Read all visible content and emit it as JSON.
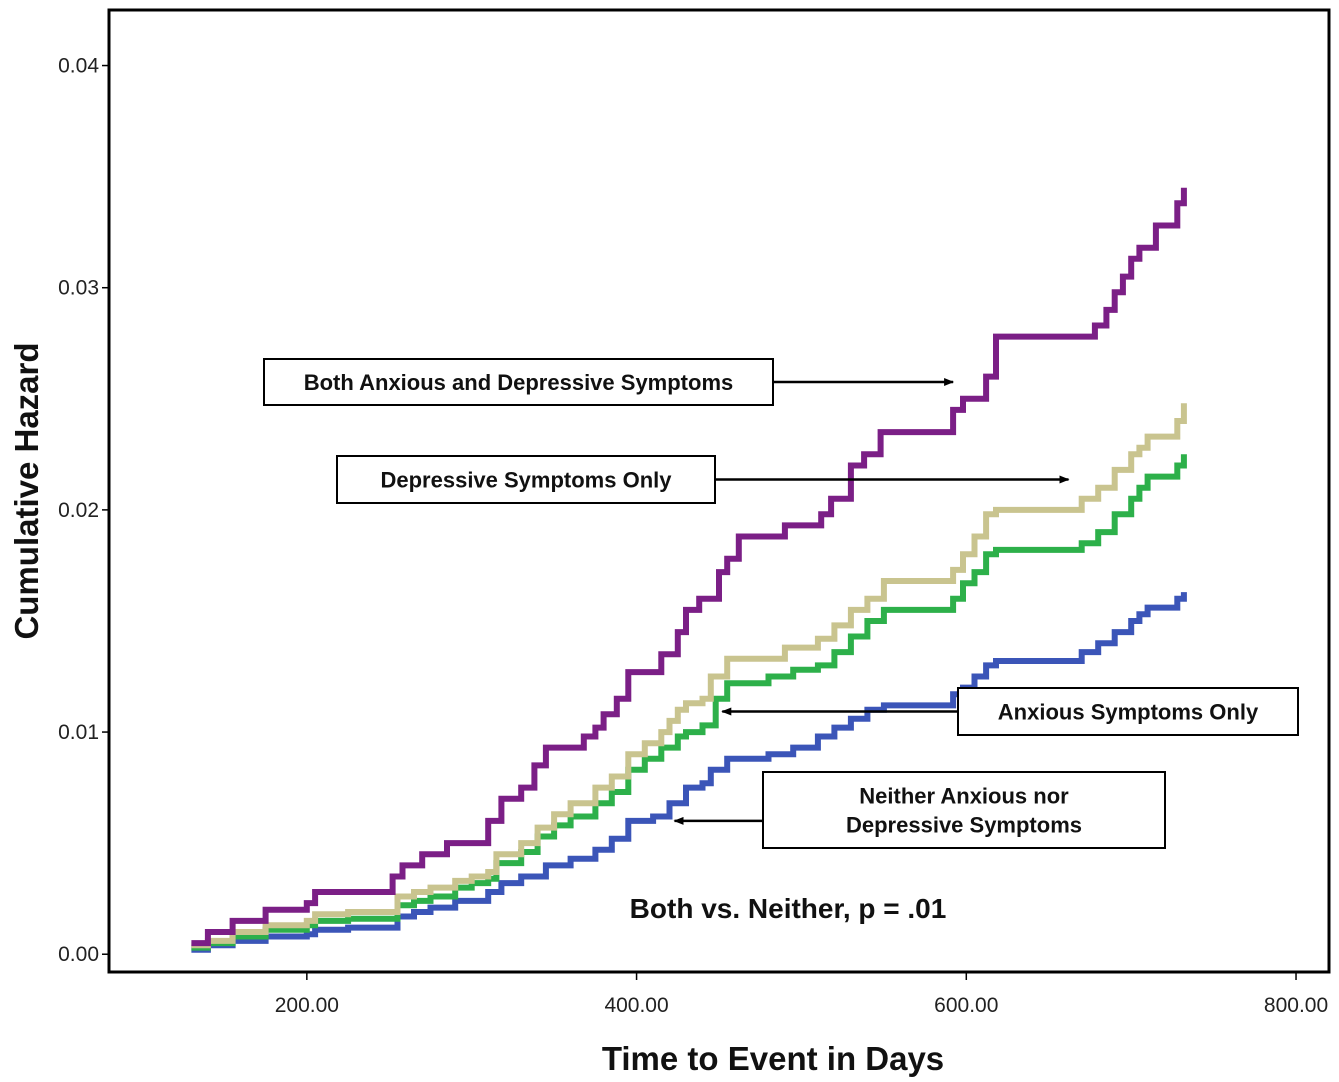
{
  "chart_data": {
    "type": "line",
    "step": true,
    "xlabel": "Time to Event in Days",
    "ylabel": "Cumulative Hazard",
    "xlim": [
      80,
      820
    ],
    "ylim": [
      -0.0008,
      0.0425
    ],
    "x_ticks": [
      200,
      400,
      600,
      800
    ],
    "x_tick_labels": [
      "200.00",
      "400.00",
      "600.00",
      "800.00"
    ],
    "y_ticks": [
      0.0,
      0.01,
      0.02,
      0.03,
      0.04
    ],
    "y_tick_labels": [
      "0.00",
      "0.01",
      "0.02",
      "0.03",
      "0.04"
    ],
    "grid": false,
    "series": [
      {
        "name": "Both Anxious and Depressive Symptoms",
        "color": "#7b1f86",
        "points": [
          [
            130,
            0.0005
          ],
          [
            140,
            0.001
          ],
          [
            155,
            0.0015
          ],
          [
            175,
            0.002
          ],
          [
            200,
            0.0023
          ],
          [
            205,
            0.0028
          ],
          [
            225,
            0.0028
          ],
          [
            250,
            0.0028
          ],
          [
            252,
            0.0035
          ],
          [
            258,
            0.004
          ],
          [
            270,
            0.0045
          ],
          [
            285,
            0.005
          ],
          [
            300,
            0.005
          ],
          [
            310,
            0.006
          ],
          [
            318,
            0.007
          ],
          [
            330,
            0.0075
          ],
          [
            338,
            0.0085
          ],
          [
            345,
            0.0093
          ],
          [
            360,
            0.0093
          ],
          [
            368,
            0.0098
          ],
          [
            375,
            0.0102
          ],
          [
            380,
            0.0108
          ],
          [
            388,
            0.0115
          ],
          [
            395,
            0.0127
          ],
          [
            410,
            0.0127
          ],
          [
            415,
            0.0135
          ],
          [
            425,
            0.0145
          ],
          [
            430,
            0.0155
          ],
          [
            438,
            0.016
          ],
          [
            448,
            0.016
          ],
          [
            450,
            0.0172
          ],
          [
            455,
            0.0178
          ],
          [
            462,
            0.0188
          ],
          [
            470,
            0.0188
          ],
          [
            480,
            0.0188
          ],
          [
            490,
            0.0193
          ],
          [
            505,
            0.0193
          ],
          [
            512,
            0.0198
          ],
          [
            518,
            0.0205
          ],
          [
            525,
            0.0205
          ],
          [
            530,
            0.022
          ],
          [
            538,
            0.0225
          ],
          [
            548,
            0.0235
          ],
          [
            585,
            0.0235
          ],
          [
            592,
            0.0245
          ],
          [
            598,
            0.025
          ],
          [
            605,
            0.025
          ],
          [
            612,
            0.026
          ],
          [
            618,
            0.0278
          ],
          [
            645,
            0.0278
          ],
          [
            670,
            0.0278
          ],
          [
            678,
            0.0283
          ],
          [
            685,
            0.029
          ],
          [
            690,
            0.0298
          ],
          [
            695,
            0.0305
          ],
          [
            700,
            0.0313
          ],
          [
            705,
            0.0318
          ],
          [
            710,
            0.0318
          ],
          [
            715,
            0.0328
          ],
          [
            725,
            0.0328
          ],
          [
            728,
            0.0338
          ],
          [
            732,
            0.0345
          ]
        ]
      },
      {
        "name": "Depressive Symptoms Only",
        "color": "#c9c48f",
        "points": [
          [
            130,
            0.0004
          ],
          [
            140,
            0.0006
          ],
          [
            155,
            0.001
          ],
          [
            175,
            0.0013
          ],
          [
            200,
            0.0015
          ],
          [
            205,
            0.0018
          ],
          [
            225,
            0.0019
          ],
          [
            250,
            0.0019
          ],
          [
            255,
            0.0026
          ],
          [
            265,
            0.0028
          ],
          [
            275,
            0.003
          ],
          [
            290,
            0.0033
          ],
          [
            300,
            0.0035
          ],
          [
            310,
            0.0037
          ],
          [
            315,
            0.0045
          ],
          [
            330,
            0.005
          ],
          [
            340,
            0.0057
          ],
          [
            350,
            0.0063
          ],
          [
            360,
            0.0068
          ],
          [
            375,
            0.0075
          ],
          [
            385,
            0.008
          ],
          [
            395,
            0.009
          ],
          [
            405,
            0.0095
          ],
          [
            415,
            0.01
          ],
          [
            420,
            0.0105
          ],
          [
            425,
            0.011
          ],
          [
            430,
            0.0113
          ],
          [
            440,
            0.0115
          ],
          [
            445,
            0.0125
          ],
          [
            455,
            0.0133
          ],
          [
            470,
            0.0133
          ],
          [
            480,
            0.0133
          ],
          [
            490,
            0.0138
          ],
          [
            510,
            0.0142
          ],
          [
            520,
            0.0148
          ],
          [
            530,
            0.0155
          ],
          [
            540,
            0.016
          ],
          [
            550,
            0.0168
          ],
          [
            580,
            0.0168
          ],
          [
            592,
            0.0173
          ],
          [
            598,
            0.018
          ],
          [
            605,
            0.0188
          ],
          [
            612,
            0.0198
          ],
          [
            618,
            0.02
          ],
          [
            645,
            0.02
          ],
          [
            665,
            0.02
          ],
          [
            670,
            0.0205
          ],
          [
            680,
            0.021
          ],
          [
            690,
            0.0218
          ],
          [
            700,
            0.0225
          ],
          [
            705,
            0.0228
          ],
          [
            710,
            0.0233
          ],
          [
            725,
            0.0233
          ],
          [
            728,
            0.024
          ],
          [
            732,
            0.0248
          ]
        ]
      },
      {
        "name": "Anxious Symptoms Only",
        "color": "#2db04a",
        "points": [
          [
            130,
            0.0003
          ],
          [
            140,
            0.0005
          ],
          [
            155,
            0.0008
          ],
          [
            175,
            0.0011
          ],
          [
            200,
            0.0013
          ],
          [
            205,
            0.0015
          ],
          [
            225,
            0.0016
          ],
          [
            250,
            0.0016
          ],
          [
            255,
            0.0022
          ],
          [
            265,
            0.0024
          ],
          [
            275,
            0.0026
          ],
          [
            290,
            0.003
          ],
          [
            300,
            0.0032
          ],
          [
            310,
            0.0034
          ],
          [
            315,
            0.0041
          ],
          [
            330,
            0.0046
          ],
          [
            340,
            0.0053
          ],
          [
            350,
            0.0058
          ],
          [
            360,
            0.0062
          ],
          [
            375,
            0.0068
          ],
          [
            385,
            0.0073
          ],
          [
            395,
            0.0083
          ],
          [
            405,
            0.0088
          ],
          [
            415,
            0.0093
          ],
          [
            425,
            0.0098
          ],
          [
            430,
            0.01
          ],
          [
            440,
            0.0103
          ],
          [
            448,
            0.0115
          ],
          [
            455,
            0.0122
          ],
          [
            470,
            0.0122
          ],
          [
            480,
            0.0125
          ],
          [
            495,
            0.0128
          ],
          [
            510,
            0.013
          ],
          [
            520,
            0.0136
          ],
          [
            530,
            0.0143
          ],
          [
            540,
            0.015
          ],
          [
            550,
            0.0155
          ],
          [
            580,
            0.0155
          ],
          [
            592,
            0.016
          ],
          [
            598,
            0.0167
          ],
          [
            605,
            0.0172
          ],
          [
            612,
            0.018
          ],
          [
            618,
            0.0182
          ],
          [
            645,
            0.0182
          ],
          [
            665,
            0.0182
          ],
          [
            670,
            0.0185
          ],
          [
            680,
            0.019
          ],
          [
            690,
            0.0198
          ],
          [
            700,
            0.0205
          ],
          [
            705,
            0.021
          ],
          [
            710,
            0.0215
          ],
          [
            725,
            0.0215
          ],
          [
            728,
            0.022
          ],
          [
            732,
            0.0225
          ]
        ]
      },
      {
        "name": "Neither Anxious nor Depressive Symptoms",
        "color": "#3b55b8",
        "points": [
          [
            130,
            0.0002
          ],
          [
            140,
            0.0004
          ],
          [
            155,
            0.0006
          ],
          [
            175,
            0.0008
          ],
          [
            200,
            0.0009
          ],
          [
            205,
            0.0011
          ],
          [
            225,
            0.0012
          ],
          [
            250,
            0.0012
          ],
          [
            255,
            0.0017
          ],
          [
            265,
            0.0019
          ],
          [
            275,
            0.0021
          ],
          [
            290,
            0.0024
          ],
          [
            300,
            0.0024
          ],
          [
            310,
            0.0028
          ],
          [
            318,
            0.0032
          ],
          [
            330,
            0.0035
          ],
          [
            345,
            0.004
          ],
          [
            360,
            0.0043
          ],
          [
            375,
            0.0047
          ],
          [
            385,
            0.0052
          ],
          [
            395,
            0.006
          ],
          [
            410,
            0.0062
          ],
          [
            420,
            0.0068
          ],
          [
            430,
            0.0075
          ],
          [
            440,
            0.0077
          ],
          [
            445,
            0.0083
          ],
          [
            455,
            0.0088
          ],
          [
            470,
            0.0088
          ],
          [
            480,
            0.009
          ],
          [
            495,
            0.0093
          ],
          [
            510,
            0.0098
          ],
          [
            520,
            0.0102
          ],
          [
            530,
            0.0106
          ],
          [
            540,
            0.011
          ],
          [
            550,
            0.0112
          ],
          [
            580,
            0.0112
          ],
          [
            592,
            0.0117
          ],
          [
            598,
            0.012
          ],
          [
            605,
            0.0125
          ],
          [
            612,
            0.013
          ],
          [
            618,
            0.0132
          ],
          [
            645,
            0.0132
          ],
          [
            665,
            0.0132
          ],
          [
            670,
            0.0136
          ],
          [
            680,
            0.014
          ],
          [
            690,
            0.0145
          ],
          [
            700,
            0.015
          ],
          [
            705,
            0.0153
          ],
          [
            710,
            0.0156
          ],
          [
            725,
            0.0156
          ],
          [
            728,
            0.016
          ],
          [
            732,
            0.0163
          ]
        ]
      }
    ],
    "annotations": [
      {
        "lines": [
          "Both Anxious and Depressive Symptoms"
        ],
        "arrow_to": [
          592,
          0.025
        ]
      },
      {
        "lines": [
          "Depressive Symptoms Only"
        ],
        "arrow_to": [
          662,
          0.02
        ]
      },
      {
        "lines": [
          "Anxious Symptoms Only"
        ],
        "arrow_to": [
          452,
          0.0101
        ]
      },
      {
        "lines": [
          "Neither Anxious nor",
          "Depressive Symptoms"
        ],
        "arrow_to": [
          423,
          0.006
        ]
      }
    ],
    "note": "Both vs. Neither, p = .01"
  }
}
